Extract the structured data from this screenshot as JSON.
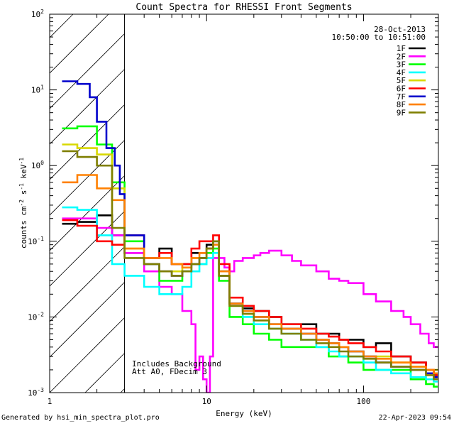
{
  "chart_data": {
    "type": "line",
    "title": "Count Spectra for RHESSI Front Segments",
    "xlabel": "Energy (keV)",
    "ylabel": "counts cm-2 s-1 keV-1",
    "x_scale": "log",
    "y_scale": "log",
    "xlim": [
      1.0,
      300.0
    ],
    "ylim": [
      0.001,
      100.0
    ],
    "x_ticks": [
      {
        "value": 1,
        "label": "1"
      },
      {
        "value": 10,
        "label": "10"
      },
      {
        "value": 100,
        "label": "100"
      }
    ],
    "y_ticks": [
      {
        "value": 0.001,
        "base": "10",
        "exp": "-3"
      },
      {
        "value": 0.01,
        "base": "10",
        "exp": "-2"
      },
      {
        "value": 0.1,
        "base": "10",
        "exp": "-1"
      },
      {
        "value": 1,
        "base": "10",
        "exp": "0"
      },
      {
        "value": 10,
        "base": "10",
        "exp": "1"
      },
      {
        "value": 100,
        "base": "10",
        "exp": "2"
      }
    ],
    "hatch_region": {
      "x_from": 1.0,
      "x_to": 3.0
    },
    "annotations": {
      "date": "28-Oct-2013",
      "time_range": "10:50:00 to 10:51:00",
      "note_line1": "Includes Background",
      "note_line2": "Att A0, FDecim 3"
    },
    "series": [
      {
        "name": "1F",
        "color": "#000000",
        "points": [
          [
            1.2,
            0.17
          ],
          [
            1.5,
            0.18
          ],
          [
            2.0,
            0.22
          ],
          [
            2.5,
            0.12
          ],
          [
            3,
            0.07
          ],
          [
            4,
            0.06
          ],
          [
            5,
            0.08
          ],
          [
            6,
            0.05
          ],
          [
            7,
            0.05
          ],
          [
            8,
            0.07
          ],
          [
            9,
            0.07
          ],
          [
            10,
            0.09
          ],
          [
            11,
            0.1
          ],
          [
            12,
            0.035
          ],
          [
            14,
            0.015
          ],
          [
            17,
            0.013
          ],
          [
            20,
            0.012
          ],
          [
            25,
            0.01
          ],
          [
            30,
            0.008
          ],
          [
            40,
            0.008
          ],
          [
            50,
            0.006
          ],
          [
            60,
            0.006
          ],
          [
            70,
            0.005
          ],
          [
            80,
            0.005
          ],
          [
            100,
            0.004
          ],
          [
            120,
            0.0045
          ],
          [
            150,
            0.003
          ],
          [
            200,
            0.0025
          ],
          [
            250,
            0.002
          ],
          [
            280,
            0.0017
          ]
        ]
      },
      {
        "name": "2F",
        "color": "#ff00ff",
        "points": [
          [
            1.2,
            0.2
          ],
          [
            1.5,
            0.2
          ],
          [
            2.0,
            0.15
          ],
          [
            2.5,
            0.12
          ],
          [
            3,
            0.07
          ],
          [
            4,
            0.04
          ],
          [
            5,
            0.025
          ],
          [
            6,
            0.02
          ],
          [
            7,
            0.012
          ],
          [
            8,
            0.008
          ],
          [
            8.5,
            0.002
          ],
          [
            9,
            0.003
          ],
          [
            9.5,
            0.0015
          ],
          [
            10,
            0.001
          ],
          [
            10.5,
            0.003
          ],
          [
            11,
            0.06
          ],
          [
            12,
            0.06
          ],
          [
            13,
            0.045
          ],
          [
            14,
            0.04
          ],
          [
            15,
            0.055
          ],
          [
            17,
            0.06
          ],
          [
            20,
            0.065
          ],
          [
            22,
            0.07
          ],
          [
            25,
            0.075
          ],
          [
            30,
            0.065
          ],
          [
            35,
            0.055
          ],
          [
            40,
            0.048
          ],
          [
            50,
            0.04
          ],
          [
            60,
            0.032
          ],
          [
            70,
            0.03
          ],
          [
            80,
            0.028
          ],
          [
            100,
            0.02
          ],
          [
            120,
            0.016
          ],
          [
            150,
            0.012
          ],
          [
            180,
            0.01
          ],
          [
            200,
            0.008
          ],
          [
            230,
            0.006
          ],
          [
            260,
            0.0045
          ],
          [
            280,
            0.004
          ]
        ]
      },
      {
        "name": "3F",
        "color": "#00ff00",
        "points": [
          [
            1.2,
            3.1
          ],
          [
            1.5,
            3.3
          ],
          [
            2.0,
            1.9
          ],
          [
            2.5,
            0.6
          ],
          [
            3,
            0.1
          ],
          [
            4,
            0.05
          ],
          [
            5,
            0.03
          ],
          [
            6,
            0.03
          ],
          [
            7,
            0.04
          ],
          [
            8,
            0.05
          ],
          [
            9,
            0.05
          ],
          [
            10,
            0.07
          ],
          [
            11,
            0.08
          ],
          [
            12,
            0.03
          ],
          [
            14,
            0.01
          ],
          [
            17,
            0.008
          ],
          [
            20,
            0.006
          ],
          [
            25,
            0.005
          ],
          [
            30,
            0.004
          ],
          [
            40,
            0.004
          ],
          [
            50,
            0.004
          ],
          [
            60,
            0.003
          ],
          [
            70,
            0.003
          ],
          [
            80,
            0.0025
          ],
          [
            100,
            0.002
          ],
          [
            120,
            0.002
          ],
          [
            150,
            0.002
          ],
          [
            200,
            0.0015
          ],
          [
            250,
            0.0013
          ],
          [
            280,
            0.0012
          ]
        ]
      },
      {
        "name": "4F",
        "color": "#00ffff",
        "points": [
          [
            1.2,
            0.28
          ],
          [
            1.5,
            0.26
          ],
          [
            2.0,
            0.12
          ],
          [
            2.5,
            0.05
          ],
          [
            3,
            0.035
          ],
          [
            4,
            0.025
          ],
          [
            5,
            0.02
          ],
          [
            6,
            0.02
          ],
          [
            7,
            0.025
          ],
          [
            8,
            0.04
          ],
          [
            9,
            0.05
          ],
          [
            10,
            0.06
          ],
          [
            11,
            0.07
          ],
          [
            12,
            0.04
          ],
          [
            14,
            0.014
          ],
          [
            17,
            0.01
          ],
          [
            20,
            0.008
          ],
          [
            25,
            0.007
          ],
          [
            30,
            0.006
          ],
          [
            40,
            0.005
          ],
          [
            50,
            0.004
          ],
          [
            60,
            0.0035
          ],
          [
            70,
            0.003
          ],
          [
            80,
            0.003
          ],
          [
            100,
            0.0025
          ],
          [
            120,
            0.002
          ],
          [
            150,
            0.0018
          ],
          [
            200,
            0.0016
          ],
          [
            250,
            0.0015
          ],
          [
            280,
            0.0014
          ]
        ]
      },
      {
        "name": "5F",
        "color": "#d8d800",
        "points": [
          [
            1.2,
            1.9
          ],
          [
            1.5,
            1.7
          ],
          [
            2.0,
            1.4
          ],
          [
            2.5,
            0.5
          ],
          [
            3,
            0.08
          ],
          [
            4,
            0.05
          ],
          [
            5,
            0.04
          ],
          [
            6,
            0.04
          ],
          [
            7,
            0.045
          ],
          [
            8,
            0.06
          ],
          [
            9,
            0.06
          ],
          [
            10,
            0.08
          ],
          [
            11,
            0.09
          ],
          [
            12,
            0.04
          ],
          [
            14,
            0.014
          ],
          [
            17,
            0.011
          ],
          [
            20,
            0.009
          ],
          [
            25,
            0.008
          ],
          [
            30,
            0.007
          ],
          [
            40,
            0.006
          ],
          [
            50,
            0.005
          ],
          [
            60,
            0.0045
          ],
          [
            70,
            0.004
          ],
          [
            80,
            0.0035
          ],
          [
            100,
            0.003
          ],
          [
            120,
            0.003
          ],
          [
            150,
            0.0025
          ],
          [
            200,
            0.0022
          ],
          [
            250,
            0.002
          ],
          [
            280,
            0.002
          ]
        ]
      },
      {
        "name": "6F",
        "color": "#ff0000",
        "points": [
          [
            1.2,
            0.19
          ],
          [
            1.5,
            0.16
          ],
          [
            2.0,
            0.1
          ],
          [
            2.5,
            0.09
          ],
          [
            3,
            0.12
          ],
          [
            4,
            0.06
          ],
          [
            5,
            0.07
          ],
          [
            6,
            0.05
          ],
          [
            7,
            0.05
          ],
          [
            8,
            0.08
          ],
          [
            9,
            0.1
          ],
          [
            10,
            0.1
          ],
          [
            11,
            0.12
          ],
          [
            12,
            0.05
          ],
          [
            14,
            0.018
          ],
          [
            17,
            0.014
          ],
          [
            20,
            0.012
          ],
          [
            25,
            0.01
          ],
          [
            30,
            0.008
          ],
          [
            40,
            0.007
          ],
          [
            50,
            0.006
          ],
          [
            60,
            0.0055
          ],
          [
            70,
            0.005
          ],
          [
            80,
            0.0045
          ],
          [
            100,
            0.004
          ],
          [
            120,
            0.0035
          ],
          [
            150,
            0.003
          ],
          [
            200,
            0.0025
          ],
          [
            250,
            0.002
          ],
          [
            280,
            0.0017
          ]
        ]
      },
      {
        "name": "7F",
        "color": "#0000cc",
        "points": [
          [
            1.2,
            13
          ],
          [
            1.5,
            12
          ],
          [
            1.8,
            8
          ],
          [
            2.0,
            3.8
          ],
          [
            2.3,
            1.7
          ],
          [
            2.6,
            1.0
          ],
          [
            2.8,
            0.42
          ],
          [
            3,
            0.12
          ],
          [
            4,
            0.05
          ],
          [
            5,
            0.04
          ],
          [
            6,
            0.035
          ],
          [
            7,
            0.04
          ],
          [
            8,
            0.05
          ],
          [
            9,
            0.06
          ],
          [
            10,
            0.08
          ],
          [
            11,
            0.09
          ],
          [
            12,
            0.04
          ],
          [
            14,
            0.015
          ],
          [
            17,
            0.012
          ],
          [
            20,
            0.01
          ],
          [
            25,
            0.008
          ],
          [
            30,
            0.007
          ],
          [
            40,
            0.006
          ],
          [
            50,
            0.005
          ],
          [
            60,
            0.0045
          ],
          [
            70,
            0.004
          ],
          [
            80,
            0.0035
          ],
          [
            100,
            0.003
          ],
          [
            120,
            0.0025
          ],
          [
            150,
            0.0022
          ],
          [
            200,
            0.002
          ],
          [
            250,
            0.0018
          ],
          [
            280,
            0.0016
          ]
        ]
      },
      {
        "name": "8F",
        "color": "#ff8000",
        "points": [
          [
            1.2,
            0.6
          ],
          [
            1.5,
            0.75
          ],
          [
            2.0,
            0.5
          ],
          [
            2.5,
            0.35
          ],
          [
            3,
            0.08
          ],
          [
            4,
            0.06
          ],
          [
            5,
            0.06
          ],
          [
            6,
            0.05
          ],
          [
            7,
            0.045
          ],
          [
            8,
            0.06
          ],
          [
            9,
            0.07
          ],
          [
            10,
            0.08
          ],
          [
            11,
            0.09
          ],
          [
            12,
            0.04
          ],
          [
            14,
            0.015
          ],
          [
            17,
            0.012
          ],
          [
            20,
            0.01
          ],
          [
            25,
            0.008
          ],
          [
            30,
            0.007
          ],
          [
            40,
            0.006
          ],
          [
            50,
            0.005
          ],
          [
            60,
            0.0045
          ],
          [
            70,
            0.004
          ],
          [
            80,
            0.0035
          ],
          [
            100,
            0.003
          ],
          [
            120,
            0.0028
          ],
          [
            150,
            0.0025
          ],
          [
            200,
            0.0022
          ],
          [
            250,
            0.002
          ],
          [
            280,
            0.0018
          ]
        ]
      },
      {
        "name": "9F",
        "color": "#7f7f00",
        "points": [
          [
            1.2,
            1.55
          ],
          [
            1.5,
            1.3
          ],
          [
            2.0,
            1.0
          ],
          [
            2.5,
            0.15
          ],
          [
            3,
            0.06
          ],
          [
            4,
            0.05
          ],
          [
            5,
            0.04
          ],
          [
            6,
            0.035
          ],
          [
            7,
            0.04
          ],
          [
            8,
            0.05
          ],
          [
            9,
            0.06
          ],
          [
            10,
            0.08
          ],
          [
            11,
            0.1
          ],
          [
            12,
            0.035
          ],
          [
            14,
            0.014
          ],
          [
            17,
            0.011
          ],
          [
            20,
            0.009
          ],
          [
            25,
            0.007
          ],
          [
            30,
            0.006
          ],
          [
            40,
            0.005
          ],
          [
            50,
            0.0045
          ],
          [
            60,
            0.004
          ],
          [
            70,
            0.0035
          ],
          [
            80,
            0.003
          ],
          [
            100,
            0.0028
          ],
          [
            120,
            0.0025
          ],
          [
            150,
            0.0022
          ],
          [
            200,
            0.002
          ],
          [
            250,
            0.0017
          ],
          [
            280,
            0.0015
          ]
        ]
      }
    ]
  },
  "footer": {
    "generated_by": "Generated by hsi_min_spectra_plot.pro",
    "timestamp": "22-Apr-2023 09:54"
  }
}
